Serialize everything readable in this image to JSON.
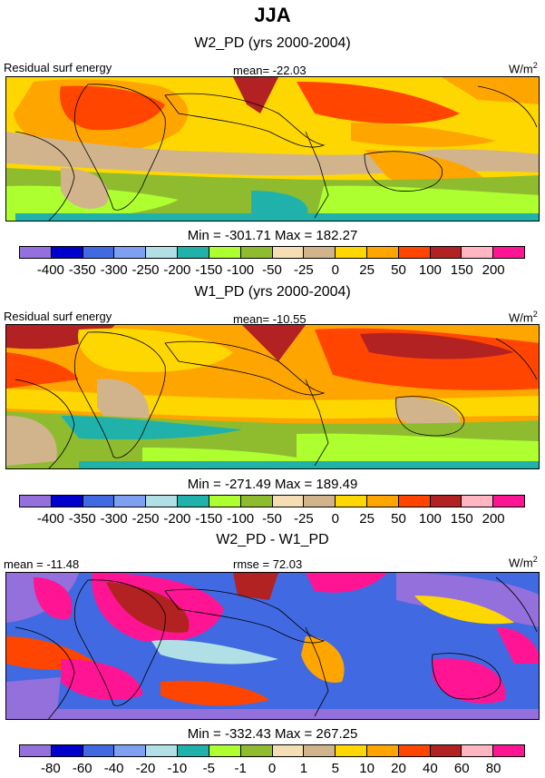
{
  "season": "JJA",
  "panels": [
    {
      "title": "W2_PD (yrs 2000-2004)",
      "variable": "Residual surf energy",
      "mean_text": "mean= -22.03",
      "units_base": "W/m",
      "units_exp": "2",
      "minmax": "Min = -301.71 Max = 182.27",
      "colorbar": "abs"
    },
    {
      "title": "W1_PD (yrs 2000-2004)",
      "variable": "Residual surf energy",
      "mean_text": "mean= -10.55",
      "units_base": "W/m",
      "units_exp": "2",
      "minmax": "Min = -271.49 Max = 189.49",
      "colorbar": "abs"
    },
    {
      "title": "W2_PD - W1_PD",
      "left_text": "mean = -11.48",
      "rmse_text": "rmse = 72.03",
      "units_base": "W/m",
      "units_exp": "2",
      "minmax": "Min = -332.43 Max = 267.25",
      "colorbar": "diff"
    }
  ],
  "chart_data": [
    {
      "type": "heatmap",
      "title": "W2_PD (yrs 2000-2004)",
      "variable": "Residual surf energy",
      "units": "W/m2",
      "mean": -22.03,
      "min": -301.71,
      "max": 182.27,
      "contour_levels": [
        -400,
        -350,
        -300,
        -250,
        -200,
        -150,
        -100,
        -50,
        -25,
        0,
        25,
        50,
        100,
        150,
        200
      ]
    },
    {
      "type": "heatmap",
      "title": "W1_PD (yrs 2000-2004)",
      "variable": "Residual surf energy",
      "units": "W/m2",
      "mean": -10.55,
      "min": -271.49,
      "max": 189.49,
      "contour_levels": [
        -400,
        -350,
        -300,
        -250,
        -200,
        -150,
        -100,
        -50,
        -25,
        0,
        25,
        50,
        100,
        150,
        200
      ]
    },
    {
      "type": "heatmap",
      "title": "W2_PD - W1_PD",
      "units": "W/m2",
      "mean": -11.48,
      "rmse": 72.03,
      "min": -332.43,
      "max": 267.25,
      "contour_levels": [
        -80,
        -60,
        -40,
        -20,
        -10,
        -5,
        -1,
        0,
        1,
        5,
        10,
        20,
        40,
        60,
        80
      ]
    }
  ],
  "colorbars": {
    "abs": {
      "labels": [
        "-400",
        "-350",
        "-300",
        "-250",
        "-200",
        "-150",
        "-100",
        "-50",
        "-25",
        "0",
        "25",
        "50",
        "100",
        "150",
        "200"
      ],
      "colors": [
        "#9370db",
        "#0000cd",
        "#4169e1",
        "#7f9ff0",
        "#b0e0e6",
        "#20b2aa",
        "#adff2f",
        "#8fbc2f",
        "#f5deb3",
        "#d2b48c",
        "#ffd700",
        "#ffa500",
        "#ff4500",
        "#b22222",
        "#ffb6c1",
        "#ff1493"
      ]
    },
    "diff": {
      "labels": [
        "-80",
        "-60",
        "-40",
        "-20",
        "-10",
        "-5",
        "-1",
        "0",
        "1",
        "5",
        "10",
        "20",
        "40",
        "60",
        "80"
      ],
      "colors": [
        "#9370db",
        "#0000cd",
        "#4169e1",
        "#7f9ff0",
        "#b0e0e6",
        "#20b2aa",
        "#adff2f",
        "#8fbc2f",
        "#f5deb3",
        "#d2b48c",
        "#ffd700",
        "#ffa500",
        "#ff4500",
        "#b22222",
        "#ffb6c1",
        "#ff1493"
      ]
    }
  }
}
